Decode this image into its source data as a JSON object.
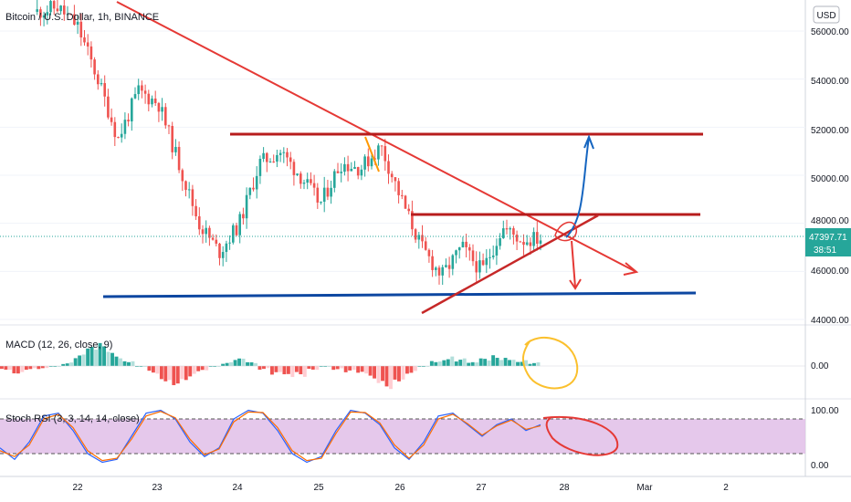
{
  "header": {
    "symbol_title": "Bitcoin / U.S. Dollar, 1h, BINANCE",
    "currency_button": "USD"
  },
  "price_axis": {
    "ticks": [
      "56000.00",
      "54000.00",
      "52000.00",
      "50000.00",
      "48000.00",
      "46000.00",
      "44000.00"
    ],
    "last_price": "47397.71",
    "countdown": "38:51"
  },
  "macd": {
    "label": "MACD (12, 26, close, 9)",
    "tick": "0.00"
  },
  "stoch_rsi": {
    "label": "Stoch RSI (3, 3, 14, 14, close)",
    "ticks": [
      "100.00",
      "0.00"
    ]
  },
  "time_axis": {
    "ticks": [
      "22",
      "23",
      "24",
      "25",
      "26",
      "27",
      "28",
      "Mar",
      "2"
    ]
  },
  "colors": {
    "up": "#26a69a",
    "down": "#ef5350",
    "trendline": "#e53935",
    "level": "#b71c1c",
    "support": "#0d47a1",
    "arrow_up": "#1565c0",
    "rsi_band": "#e1bee7",
    "rsi_k": "#2962ff",
    "rsi_d": "#ff6d00",
    "circle_yellow": "#fbc02d",
    "circle_red": "#e53935",
    "last_price": "#26a69a"
  },
  "chart_data": [
    {
      "type": "candlestick",
      "title": "Bitcoin / U.S. Dollar, 1h, BINANCE",
      "ylim": [
        43500,
        57000
      ],
      "x_ticks": [
        "22",
        "23",
        "24",
        "25",
        "26",
        "27",
        "28",
        "Mar",
        "2"
      ],
      "y_ticks": [
        44000,
        46000,
        48000,
        50000,
        52000,
        54000,
        56000
      ],
      "last_price": 47397.71,
      "close_path": [
        [
          "2021-02-21 12:00",
          56800
        ],
        [
          "2021-02-21 18:00",
          57000
        ],
        [
          "2021-02-22 00:00",
          56200
        ],
        [
          "2021-02-22 06:00",
          54000
        ],
        [
          "2021-02-22 12:00",
          51500
        ],
        [
          "2021-02-22 18:00",
          53500
        ],
        [
          "2021-02-23 00:00",
          53000
        ],
        [
          "2021-02-23 06:00",
          50500
        ],
        [
          "2021-02-23 12:00",
          48000
        ],
        [
          "2021-02-23 18:00",
          46800
        ],
        [
          "2021-02-24 00:00",
          48000
        ],
        [
          "2021-02-24 06:00",
          50500
        ],
        [
          "2021-02-24 12:00",
          51000
        ],
        [
          "2021-02-24 18:00",
          50000
        ],
        [
          "2021-02-25 00:00",
          48800
        ],
        [
          "2021-02-25 06:00",
          50500
        ],
        [
          "2021-02-25 12:00",
          50300
        ],
        [
          "2021-02-25 18:00",
          51200
        ],
        [
          "2021-02-26 00:00",
          49000
        ],
        [
          "2021-02-26 06:00",
          47000
        ],
        [
          "2021-02-26 12:00",
          45800
        ],
        [
          "2021-02-26 18:00",
          47000
        ],
        [
          "2021-02-27 00:00",
          46000
        ],
        [
          "2021-02-27 06:00",
          47800
        ],
        [
          "2021-02-27 12:00",
          47300
        ],
        [
          "2021-02-27 18:00",
          47397.71
        ]
      ],
      "annotations": [
        "descending trendline",
        "resistance ~51600",
        "resistance ~48400",
        "support ~45000",
        "rising trendline",
        "arrow up to ~51800",
        "arrow down to ~46000",
        "arrow right to ~46500"
      ]
    },
    {
      "type": "bar",
      "title": "MACD (12, 26, close, 9)",
      "y_ticks": [
        0
      ],
      "values": [
        -1,
        -2,
        -1,
        -1,
        0,
        1,
        3,
        5,
        6,
        4,
        2,
        0,
        -2,
        -4,
        -5,
        -4,
        -2,
        0,
        1,
        2,
        1,
        -1,
        -3,
        -4,
        -3,
        -1,
        0,
        -1,
        -2,
        -3,
        -5,
        -6,
        -4,
        -2,
        0,
        2,
        3,
        2,
        1,
        2,
        3,
        3,
        2,
        1
      ]
    },
    {
      "type": "line",
      "title": "Stoch RSI (3, 3, 14, 14, close)",
      "y_ticks": [
        100,
        0
      ],
      "band": [
        20,
        80
      ],
      "series": [
        {
          "values": [
            30,
            10,
            40,
            85,
            90,
            60,
            20,
            5,
            10,
            50,
            90,
            95,
            80,
            40,
            15,
            30,
            80,
            95,
            90,
            60,
            20,
            5,
            15,
            60,
            95,
            90,
            70,
            30,
            10,
            40,
            85,
            90,
            70,
            50,
            70,
            80,
            60,
            70
          ]
        },
        {
          "values": [
            25,
            15,
            35,
            80,
            88,
            65,
            25,
            8,
            12,
            45,
            85,
            93,
            82,
            45,
            18,
            28,
            75,
            92,
            91,
            65,
            25,
            8,
            12,
            55,
            92,
            91,
            73,
            35,
            12,
            35,
            80,
            88,
            72,
            52,
            68,
            78,
            62,
            68
          ]
        }
      ]
    }
  ]
}
